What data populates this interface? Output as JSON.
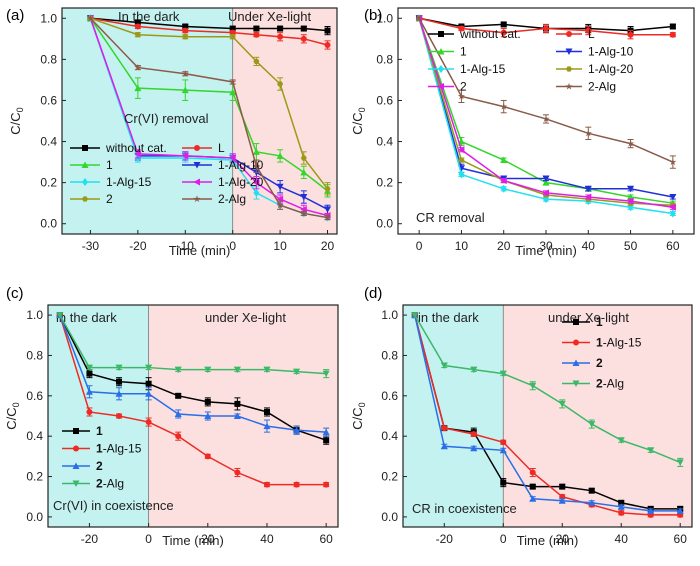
{
  "chart_data": [
    {
      "panel_label": "(a)",
      "type": "line",
      "xlabel": "Time (min)",
      "ylabel": "C/C0",
      "xlim": [
        -36,
        22
      ],
      "ylim": [
        -0.05,
        1.05
      ],
      "xticks": [
        -30,
        -20,
        -10,
        0,
        10,
        20
      ],
      "yticks": [
        0.0,
        0.2,
        0.4,
        0.6,
        0.8,
        1.0
      ],
      "regions": [
        {
          "label": "In the dark",
          "from": -36,
          "to": 0,
          "color": "#c4f2f0"
        },
        {
          "label": "Under Xe-light",
          "from": 0,
          "to": 22,
          "color": "#fbe0df"
        }
      ],
      "annotation": "Cr(VI) removal",
      "legend": {
        "position": "bottom-left",
        "columns": 2
      },
      "x": [
        -30,
        -20,
        -10,
        0,
        5,
        10,
        15,
        20
      ],
      "series": [
        {
          "name": "without cat.",
          "color": "#000000",
          "marker": "square",
          "values": [
            1.0,
            0.98,
            0.96,
            0.95,
            0.95,
            0.95,
            0.95,
            0.94
          ],
          "err": [
            0,
            0.01,
            0.01,
            0.01,
            0.01,
            0.01,
            0.01,
            0.02
          ]
        },
        {
          "name": "L",
          "color": "#ee2a24",
          "marker": "circle",
          "values": [
            1.0,
            0.96,
            0.94,
            0.93,
            0.92,
            0.91,
            0.9,
            0.87
          ],
          "err": [
            0,
            0.01,
            0.01,
            0.01,
            0.01,
            0.02,
            0.02,
            0.02
          ]
        },
        {
          "name": "1",
          "color": "#33d62a",
          "marker": "triangle-up",
          "values": [
            1.0,
            0.66,
            0.65,
            0.64,
            0.35,
            0.33,
            0.25,
            0.16
          ],
          "err": [
            0,
            0.05,
            0.05,
            0.04,
            0.04,
            0.03,
            0.03,
            0.03
          ]
        },
        {
          "name": "1-Alg-10",
          "color": "#2030d8",
          "marker": "triangle-down",
          "values": [
            1.0,
            0.33,
            0.33,
            0.32,
            0.25,
            0.18,
            0.13,
            0.07
          ],
          "err": [
            0,
            0.02,
            0.02,
            0.02,
            0.03,
            0.03,
            0.03,
            0.02
          ]
        },
        {
          "name": "1-Alg-15",
          "color": "#22e0f0",
          "marker": "diamond",
          "values": [
            1.0,
            0.32,
            0.32,
            0.31,
            0.15,
            0.09,
            0.05,
            0.03
          ],
          "err": [
            0,
            0.02,
            0.02,
            0.02,
            0.03,
            0.02,
            0.01,
            0.01
          ]
        },
        {
          "name": "1-Alg-20",
          "color": "#e01ce8",
          "marker": "triangle-left",
          "values": [
            1.0,
            0.34,
            0.33,
            0.32,
            0.2,
            0.12,
            0.07,
            0.04
          ],
          "err": [
            0,
            0.02,
            0.02,
            0.02,
            0.03,
            0.02,
            0.02,
            0.01
          ]
        },
        {
          "name": "2",
          "color": "#9a9a18",
          "marker": "hexagon",
          "values": [
            1.0,
            0.92,
            0.91,
            0.91,
            0.79,
            0.68,
            0.32,
            0.17
          ],
          "err": [
            0,
            0.01,
            0.01,
            0.01,
            0.02,
            0.03,
            0.03,
            0.03
          ]
        },
        {
          "name": "2-Alg",
          "color": "#8b5a48",
          "marker": "star",
          "values": [
            1.0,
            0.76,
            0.73,
            0.69,
            0.28,
            0.09,
            0.05,
            0.03
          ],
          "err": [
            0,
            0.01,
            0.01,
            0.01,
            0.03,
            0.02,
            0.01,
            0.01
          ]
        }
      ]
    },
    {
      "panel_label": "(b)",
      "type": "line",
      "xlabel": "Time (min)",
      "ylabel": "C/C0",
      "xlim": [
        -5,
        65
      ],
      "ylim": [
        -0.05,
        1.05
      ],
      "xticks": [
        0,
        10,
        20,
        30,
        40,
        50,
        60
      ],
      "yticks": [
        0.0,
        0.2,
        0.4,
        0.6,
        0.8,
        1.0
      ],
      "regions": [],
      "annotation": "CR removal",
      "legend": {
        "position": "top-right",
        "columns": 2
      },
      "x": [
        0,
        10,
        20,
        30,
        40,
        50,
        60
      ],
      "series": [
        {
          "name": "without cat.",
          "color": "#000000",
          "marker": "square",
          "values": [
            1.0,
            0.96,
            0.97,
            0.95,
            0.95,
            0.94,
            0.96
          ],
          "err": [
            0,
            0.01,
            0.01,
            0.02,
            0.02,
            0.02,
            0.01
          ]
        },
        {
          "name": "L",
          "color": "#ee2a24",
          "marker": "circle",
          "values": [
            1.0,
            0.95,
            0.93,
            0.95,
            0.94,
            0.92,
            0.92
          ],
          "err": [
            0,
            0.01,
            0.02,
            0.02,
            0.02,
            0.02,
            0.01
          ]
        },
        {
          "name": "1",
          "color": "#33d62a",
          "marker": "triangle-up",
          "values": [
            1.0,
            0.4,
            0.31,
            0.2,
            0.17,
            0.13,
            0.1
          ],
          "err": [
            0,
            0.02,
            0.01,
            0.01,
            0.01,
            0.01,
            0.01
          ]
        },
        {
          "name": "1-Alg-10",
          "color": "#2030d8",
          "marker": "triangle-down",
          "values": [
            1.0,
            0.27,
            0.22,
            0.22,
            0.17,
            0.17,
            0.13
          ],
          "err": [
            0,
            0.02,
            0.01,
            0.01,
            0.01,
            0.01,
            0.01
          ]
        },
        {
          "name": "1-Alg-15",
          "color": "#22e0f0",
          "marker": "diamond",
          "values": [
            1.0,
            0.24,
            0.17,
            0.12,
            0.11,
            0.08,
            0.05
          ],
          "err": [
            0,
            0.01,
            0.01,
            0.01,
            0.01,
            0.01,
            0.01
          ]
        },
        {
          "name": "1-Alg-20",
          "color": "#9a9a18",
          "marker": "hexagon",
          "values": [
            1.0,
            0.31,
            0.21,
            0.14,
            0.12,
            0.1,
            0.09
          ],
          "err": [
            0,
            0.01,
            0.01,
            0.01,
            0.01,
            0.01,
            0.01
          ]
        },
        {
          "name": "2",
          "color": "#e01ce8",
          "marker": "triangle-left",
          "values": [
            1.0,
            0.36,
            0.21,
            0.15,
            0.13,
            0.11,
            0.08
          ],
          "err": [
            0,
            0.01,
            0.01,
            0.01,
            0.01,
            0.01,
            0.01
          ]
        },
        {
          "name": "2-Alg",
          "color": "#8b5a48",
          "marker": "star",
          "values": [
            1.0,
            0.62,
            0.57,
            0.51,
            0.44,
            0.39,
            0.3
          ],
          "err": [
            0,
            0.03,
            0.03,
            0.02,
            0.03,
            0.02,
            0.03
          ]
        }
      ]
    },
    {
      "panel_label": "(c)",
      "type": "line",
      "xlabel": "Time (min)",
      "ylabel": "C/C0",
      "xlim": [
        -34,
        64
      ],
      "ylim": [
        -0.05,
        1.05
      ],
      "xticks": [
        -20,
        0,
        20,
        40,
        60
      ],
      "yticks": [
        0.0,
        0.2,
        0.4,
        0.6,
        0.8,
        1.0
      ],
      "regions": [
        {
          "label": "in the dark",
          "from": -34,
          "to": 0,
          "color": "#c4f2f0"
        },
        {
          "label": "under Xe-light",
          "from": 0,
          "to": 64,
          "color": "#fbe0df"
        }
      ],
      "annotation": "Cr(VI) in coexistence",
      "legend": {
        "position": "bottom-left",
        "columns": 1
      },
      "x": [
        -30,
        -20,
        -10,
        0,
        10,
        20,
        30,
        40,
        50,
        60
      ],
      "series": [
        {
          "name": "1",
          "color": "#000000",
          "marker": "square",
          "values": [
            1.0,
            0.71,
            0.67,
            0.66,
            0.6,
            0.57,
            0.56,
            0.52,
            0.43,
            0.38
          ],
          "err": [
            0,
            0.02,
            0.02,
            0.03,
            0.01,
            0.02,
            0.03,
            0.02,
            0.02,
            0.02
          ]
        },
        {
          "name": "1-Alg-15",
          "color": "#ee2a24",
          "marker": "circle",
          "values": [
            1.0,
            0.52,
            0.5,
            0.47,
            0.4,
            0.3,
            0.22,
            0.16,
            0.16,
            0.16
          ],
          "err": [
            0,
            0.02,
            0.01,
            0.02,
            0.02,
            0.01,
            0.02,
            0.01,
            0.01,
            0.01
          ]
        },
        {
          "name": "2",
          "color": "#2a6ee8",
          "marker": "triangle-up",
          "values": [
            1.0,
            0.62,
            0.61,
            0.61,
            0.51,
            0.5,
            0.5,
            0.45,
            0.43,
            0.42
          ],
          "err": [
            0,
            0.03,
            0.03,
            0.03,
            0.02,
            0.02,
            0.01,
            0.03,
            0.02,
            0.02
          ]
        },
        {
          "name": "2-Alg",
          "color": "#3cb868",
          "marker": "triangle-down",
          "values": [
            1.0,
            0.74,
            0.74,
            0.74,
            0.73,
            0.73,
            0.73,
            0.73,
            0.72,
            0.71
          ],
          "err": [
            0,
            0.01,
            0.01,
            0.01,
            0.01,
            0.01,
            0.01,
            0.01,
            0.01,
            0.02
          ]
        }
      ]
    },
    {
      "panel_label": "(d)",
      "type": "line",
      "xlabel": "Time (min)",
      "ylabel": "C/C0",
      "xlim": [
        -34,
        64
      ],
      "ylim": [
        -0.05,
        1.05
      ],
      "xticks": [
        -20,
        0,
        20,
        40,
        60
      ],
      "yticks": [
        0.0,
        0.2,
        0.4,
        0.6,
        0.8,
        1.0
      ],
      "regions": [
        {
          "label": "in the dark",
          "from": -34,
          "to": 0,
          "color": "#c4f2f0"
        },
        {
          "label": "under Xe-light",
          "from": 0,
          "to": 64,
          "color": "#fbe0df"
        }
      ],
      "annotation": "CR in coexistence",
      "legend": {
        "position": "top-right",
        "columns": 1
      },
      "x": [
        -30,
        -20,
        -10,
        0,
        10,
        20,
        30,
        40,
        50,
        60
      ],
      "series": [
        {
          "name": "1",
          "color": "#000000",
          "marker": "square",
          "values": [
            1.0,
            0.44,
            0.42,
            0.17,
            0.15,
            0.15,
            0.13,
            0.07,
            0.04,
            0.04
          ],
          "err": [
            0,
            0.01,
            0.02,
            0.02,
            0.01,
            0.01,
            0.01,
            0.01,
            0.01,
            0.01
          ]
        },
        {
          "name": "1-Alg-15",
          "color": "#ee2a24",
          "marker": "circle",
          "values": [
            1.0,
            0.44,
            0.41,
            0.37,
            0.22,
            0.1,
            0.06,
            0.02,
            0.01,
            0.01
          ],
          "err": [
            0,
            0.01,
            0.01,
            0.01,
            0.02,
            0.01,
            0.01,
            0.01,
            0.01,
            0.01
          ]
        },
        {
          "name": "2",
          "color": "#2a6ee8",
          "marker": "triangle-up",
          "values": [
            1.0,
            0.35,
            0.34,
            0.33,
            0.09,
            0.08,
            0.07,
            0.05,
            0.03,
            0.03
          ],
          "err": [
            0,
            0.01,
            0.01,
            0.01,
            0.01,
            0.01,
            0.01,
            0.01,
            0.01,
            0.01
          ]
        },
        {
          "name": "2-Alg",
          "color": "#3cb868",
          "marker": "triangle-down",
          "values": [
            1.0,
            0.75,
            0.73,
            0.71,
            0.65,
            0.56,
            0.46,
            0.38,
            0.33,
            0.27
          ],
          "err": [
            0,
            0.01,
            0.01,
            0.01,
            0.02,
            0.02,
            0.02,
            0.01,
            0.01,
            0.02
          ]
        }
      ]
    }
  ]
}
